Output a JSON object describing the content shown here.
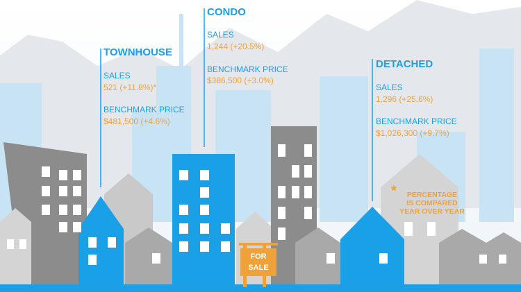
{
  "townhouse": {
    "title": "TOWNHOUSE",
    "sales_label": "SALES",
    "sales": "521 (+11.8%)*",
    "price_label": "BENCHMARK PRICE",
    "price": "$481,500 (+4.6%)"
  },
  "condo": {
    "title": "CONDO",
    "sales_label": "SALES",
    "sales": "1,244 (+20.5%)",
    "price_label": "BENCHMARK PRICE",
    "price": "$386,500 (+3.0%)"
  },
  "detached": {
    "title": "DETACHED",
    "sales_label": "SALES",
    "sales": "1,296 (+25.6%)",
    "price_label": "BENCHMARK PRICE",
    "price": "$1,026,300 (+9.7%)"
  },
  "note": {
    "mark": "*",
    "lines": [
      "PERCENTAGE",
      "IS COMPARED",
      "YEAR OVER YEAR"
    ]
  },
  "sign": {
    "lines": [
      "FOR",
      "SALE"
    ]
  }
}
